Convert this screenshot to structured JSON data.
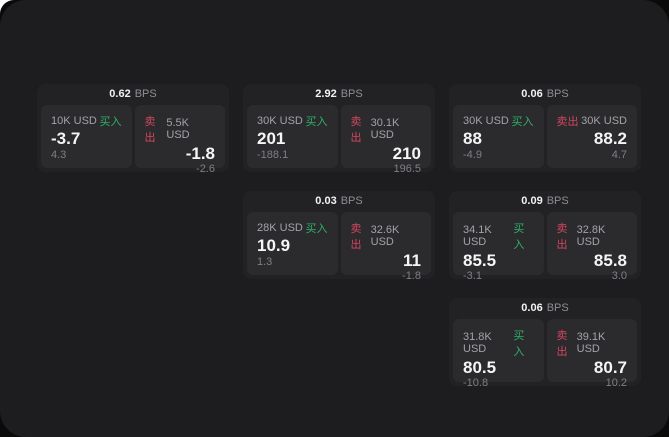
{
  "labels": {
    "unit": "BPS",
    "buy": "买入",
    "sell": "卖出"
  },
  "colors": {
    "buy_accent": "#2eb06b",
    "sell_accent": "#d2455f",
    "surface": "#1d1d1f",
    "card": "#222225",
    "panel": "#2b2b2e"
  },
  "cards": [
    {
      "bps": "0.62",
      "buy": {
        "notional": "10K USD",
        "price": "-3.7",
        "sub": "4.3"
      },
      "sell": {
        "notional": "5.5K USD",
        "price": "-1.8",
        "sub": "-2.6"
      }
    },
    {
      "bps": "2.92",
      "buy": {
        "notional": "30K USD",
        "price": "201",
        "sub": "-188.1"
      },
      "sell": {
        "notional": "30.1K USD",
        "price": "210",
        "sub": "196.5"
      }
    },
    {
      "bps": "0.06",
      "buy": {
        "notional": "30K USD",
        "price": "88",
        "sub": "-4.9"
      },
      "sell": {
        "notional": "30K USD",
        "price": "88.2",
        "sub": "4.7"
      }
    },
    {
      "bps": "0.03",
      "buy": {
        "notional": "28K USD",
        "price": "10.9",
        "sub": "1.3"
      },
      "sell": {
        "notional": "32.6K USD",
        "price": "11",
        "sub": "-1.8"
      }
    },
    {
      "bps": "0.09",
      "buy": {
        "notional": "34.1K USD",
        "price": "85.5",
        "sub": "-3.1"
      },
      "sell": {
        "notional": "32.8K USD",
        "price": "85.8",
        "sub": "3.0"
      }
    },
    {
      "bps": "0.06",
      "buy": {
        "notional": "31.8K USD",
        "price": "80.5",
        "sub": "-10.8"
      },
      "sell": {
        "notional": "39.1K USD",
        "price": "80.7",
        "sub": "10.2"
      }
    }
  ]
}
